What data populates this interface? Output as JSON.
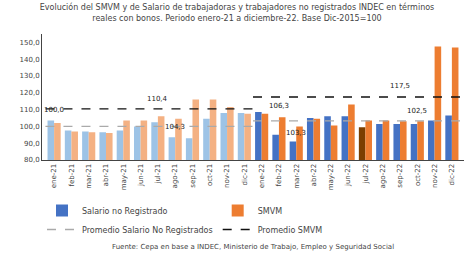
{
  "chart_data": {
    "type": "bar",
    "title": "Evolución del SMVM y de Salario de trabajadoras y trabajadores no registrados INDEC en términos",
    "subtitle": "reales con bonos. Periodo enero-21 a diciembre-22. Base Dic-2015=100",
    "source": "Fuente: Cepa en base a INDEC, Ministerio de Trabajo, Empleo y Seguridad Social",
    "categories": [
      "ene-21",
      "feb-21",
      "mar-21",
      "abr-21",
      "may-21",
      "jun-21",
      "jul-21",
      "ago-21",
      "sep-21",
      "oct-21",
      "nov-21",
      "dic-21",
      "ene-22",
      "feb-22",
      "mar-22",
      "abr-22",
      "may-22",
      "jun-22",
      "jul-22",
      "ago-22",
      "sep-22",
      "oct-22",
      "nov-22",
      "dic-22"
    ],
    "series": [
      {
        "name": "Salario no Registrado",
        "type": "bar",
        "color": "#4472C4",
        "colors": [
          "#9DC3E6",
          "#9DC3E6",
          "#9DC3E6",
          "#9DC3E6",
          "#9DC3E6",
          "#9DC3E6",
          "#9DC3E6",
          "#9DC3E6",
          "#9DC3E6",
          "#9DC3E6",
          "#9DC3E6",
          "#9DC3E6",
          "#4472C4",
          "#4472C4",
          "#4472C4",
          "#4472C4",
          "#4472C4",
          "#4472C4",
          "#7B3F00",
          "#4472C4",
          "#4472C4",
          "#4472C4",
          "#4472C4",
          "#4472C4"
        ],
        "values": [
          103.5,
          97.5,
          97.0,
          96.5,
          97.5,
          100.0,
          102.5,
          93.5,
          93.0,
          104.5,
          108.0,
          108.0,
          108.5,
          95.0,
          91.0,
          105.0,
          106.0,
          106.0,
          99.5,
          101.5,
          101.5,
          101.5,
          103.5,
          106.5
        ]
      },
      {
        "name": "SMVM",
        "type": "bar",
        "color": "#ED7D31",
        "colors": [
          "#F4B183",
          "#F4B183",
          "#F4B183",
          "#F4B183",
          "#F4B183",
          "#F4B183",
          "#F4B183",
          "#F4B183",
          "#F4B183",
          "#F4B183",
          "#F4B183",
          "#F4B183",
          "#ED7D31",
          "#ED7D31",
          "#ED7D31",
          "#ED7D31",
          "#ED7D31",
          "#ED7D31",
          "#ED7D31",
          "#ED7D31",
          "#ED7D31",
          "#ED7D31",
          "#ED7D31",
          "#ED7D31"
        ],
        "values": [
          102.0,
          97.0,
          96.5,
          96.0,
          103.5,
          103.5,
          106.0,
          104.5,
          116.0,
          116.0,
          111.5,
          107.5,
          107.5,
          105.5,
          100.0,
          104.5,
          100.5,
          113.0,
          103.5,
          103.5,
          103.0,
          103.0,
          147.5,
          147.0
        ]
      },
      {
        "name": "Promedio Salario No Registrados",
        "type": "line",
        "line_style": "dashed",
        "color": "#AAAAAA",
        "values": [
          100.0,
          100.0,
          100.0,
          100.0,
          100.0,
          100.0,
          100.0,
          100.0,
          100.0,
          100.0,
          100.0,
          100.0,
          103.3,
          103.3,
          103.3,
          103.3,
          103.3,
          103.3,
          103.3,
          103.3,
          103.3,
          103.3,
          103.3,
          103.3
        ]
      },
      {
        "name": "Promedio SMVM",
        "type": "line",
        "line_style": "dashed",
        "color": "#111111",
        "values": [
          110.4,
          110.4,
          110.4,
          110.4,
          110.4,
          110.4,
          110.4,
          110.4,
          110.4,
          110.4,
          110.4,
          110.4,
          117.5,
          117.5,
          117.5,
          117.5,
          117.5,
          117.5,
          117.5,
          117.5,
          117.5,
          117.5,
          117.5,
          117.5
        ]
      }
    ],
    "annotations": [
      {
        "text": "100,0",
        "category": "ene-21",
        "y": 106.0
      },
      {
        "text": "110,4",
        "category": "jul-21",
        "y": 112.5
      },
      {
        "text": "104,3",
        "category": "ago-21",
        "y": 96.0
      },
      {
        "text": "106,3",
        "category": "feb-22",
        "y": 108.5
      },
      {
        "text": "103,3",
        "category": "mar-22",
        "y": 92.5
      },
      {
        "text": "117,5",
        "category": "sep-22",
        "y": 120.5
      },
      {
        "text": "102,5",
        "category": "oct-22",
        "y": 105.5
      }
    ],
    "ylim": [
      80.0,
      155.0
    ],
    "yticks": [
      {
        "value": 80.0,
        "label": "80,0"
      },
      {
        "value": 90.0,
        "label": "90,0"
      },
      {
        "value": 100.0,
        "label": "100,0"
      },
      {
        "value": 110.0,
        "label": "110,0"
      },
      {
        "value": 120.0,
        "label": "120,0"
      },
      {
        "value": 130.0,
        "label": "130,0"
      },
      {
        "value": 140.0,
        "label": "140,0"
      },
      {
        "value": 150.0,
        "label": "150,0"
      }
    ],
    "grid": false,
    "legend": "bottom"
  }
}
